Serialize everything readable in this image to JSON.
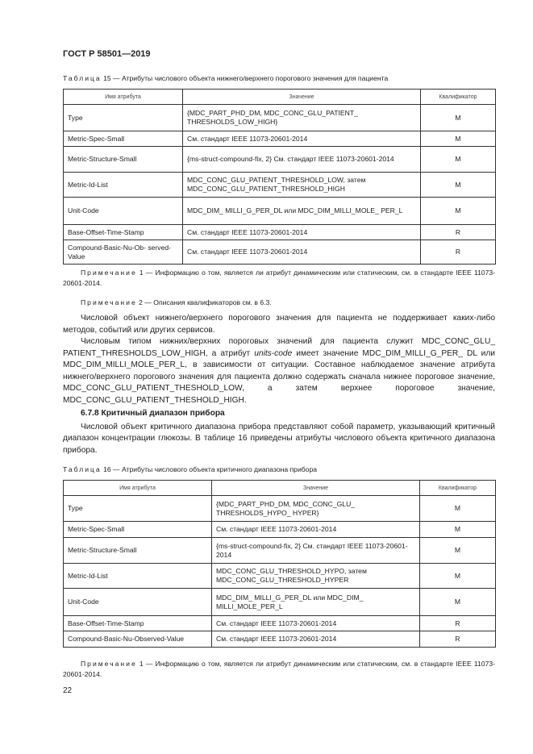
{
  "header": {
    "title": "ГОСТ Р 58501—2019"
  },
  "table15": {
    "caption_label": "Таблица",
    "caption_text": "15 — Атрибуты числового объекта нижнего/верхнего порогового значения для пациента",
    "columns": [
      "Имя атрибута",
      "Значение",
      "Квалификатор"
    ],
    "rows": [
      {
        "name": "Type",
        "value": "{MDC_PART_PHD_DM, MDC_CONC_GLU_PATIENT_ THRESHOLDS_LOW_HIGH}",
        "qual": "M"
      },
      {
        "name": "Metric-Spec-Small",
        "value": "См. стандарт IEEE 11073-20601-2014",
        "qual": "M"
      },
      {
        "name": "Metric-Structure-Small",
        "value": "{ms-struct-compound-fix, 2} См. стандарт IEEE 11073-20601-2014",
        "qual": "M"
      },
      {
        "name": "Metric-Id-List",
        "value": "MDC_CONC_GLU_PATIENT_THRESHOLD_LOW, затем MDC_CONC_GLU_PATIENT_THRESHOLD_HIGH",
        "qual": "M"
      },
      {
        "name": "Unit-Code",
        "value": "MDC_DIM_ MILLI_G_PER_DL или MDC_DIM_MILLI_MOLE_ PER_L",
        "qual": "M"
      },
      {
        "name": "Base-Offset-Time-Stamp",
        "value": "См. стандарт IEEE 11073-20601-2014",
        "qual": "R"
      },
      {
        "name": "Compound-Basic-Nu-Ob- served-Value",
        "value": "См. стандарт IEEE 11073-20601-2014",
        "qual": "R"
      }
    ]
  },
  "notes15": [
    {
      "label": "Примечание",
      "text": "1 — Информацию о том, является ли атрибут динамическим или статическим, см. в стандарте IEEE 11073-20601-2014."
    },
    {
      "label": "Примечание",
      "text": "2 — Описания квалификаторов см. в 6.3."
    }
  ],
  "body": {
    "p1": "Числовой объект нижнего/верхнего порогового значения для пациента не поддерживает каких-либо методов, событий или других сервисов.",
    "p2a": "Числовым типом нижних/верхних пороговых значений для пациента служит MDC_CONC_GLU_ PATIENT_THRESHOLDS_LOW_HIGH, а атрибут ",
    "p2_italic": "units-code",
    "p2b": " имеет значение MDC_DIM_MILLI_G_PER_ DL или MDC_DIM_MILLI_MOLE_PER_L, в зависимости от ситуации. Составное наблюдаемое значение атрибута нижнего/верхнего порогового значения для пациента должно содержать сначала нижнее пороговое значение, MDC_CONC_GLU_PATIENT_THESHOLD_LOW, а затем верхнее пороговое значение, MDC_CONC_GLU_PATIENT_THESHOLD_HIGH.",
    "section_heading": "6.7.8 Критичный диапазон прибора",
    "p3": "Числовой объект критичного диапазона прибора представляют собой параметр, указывающий критичный диапазон концентрации глюкозы. В таблице 16 приведены атрибуты числового объекта критичного диапазона прибора."
  },
  "table16": {
    "caption_label": "Таблица",
    "caption_text": "16 — Атрибуты числового объекта критичного диапазона прибора",
    "columns": [
      "Имя атрибута",
      "Значение",
      "Квалификатор"
    ],
    "rows": [
      {
        "name": "Type",
        "value": "{MDC_PART_PHD_DM, MDC_CONC_GLU_ THRESHOLDS_HYPO_ HYPER}",
        "qual": "M"
      },
      {
        "name": "Metric-Spec-Small",
        "value": "См. стандарт IEEE 11073-20601-2014",
        "qual": "M"
      },
      {
        "name": "Metric-Structure-Small",
        "value": "{ms-struct-compound-fix, 2} См. стандарт IEEE 11073-20601-2014",
        "qual": "M"
      },
      {
        "name": "Metric-Id-List",
        "value": "MDC_CONC_GLU_THRESHOLD_HYPO, затем MDC_CONC_GLU_THRESHOLD_HYPER",
        "qual": "M"
      },
      {
        "name": "Unit-Code",
        "value": "MDC_DIM_ MILLI_G_PER_DL или MDC_DIM_ MILLI_MOLE_PER_L",
        "qual": "M"
      },
      {
        "name": "Base-Offset-Time-Stamp",
        "value": "См. стандарт IEEE 11073-20601-2014",
        "qual": "R"
      },
      {
        "name": "Compound-Basic-Nu-Observed-Value",
        "value": "См. стандарт IEEE 11073-20601-2014",
        "qual": "R"
      }
    ]
  },
  "notes16": [
    {
      "label": "Примечание",
      "text": "1 — Информацию о том, является ли атрибут динамическим или статическим, см. в стандарте IEEE 11073-20601-2014."
    }
  ],
  "footer": {
    "page_number": "22"
  }
}
